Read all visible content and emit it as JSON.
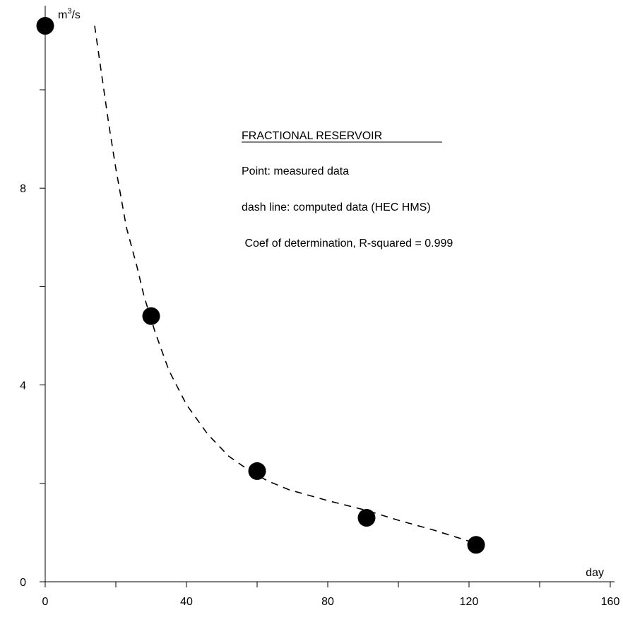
{
  "chart_data": {
    "type": "scatter",
    "xlabel": "day",
    "ylabel_base": "m",
    "ylabel_sup": "3",
    "ylabel_tail": "/s",
    "xlim": [
      0,
      160
    ],
    "ylim": [
      0,
      11.3
    ],
    "x_ticks": [
      0,
      40,
      80,
      120,
      160
    ],
    "x_minor_ticks": [
      20,
      60,
      100,
      140
    ],
    "y_ticks": [
      0,
      4,
      8
    ],
    "y_minor_ticks": [
      2,
      6,
      10
    ],
    "grid": false,
    "series": [
      {
        "role": "measured",
        "style": "points",
        "x": [
          0,
          30,
          60,
          91,
          122
        ],
        "y": [
          11.3,
          5.4,
          2.25,
          1.3,
          0.75
        ]
      },
      {
        "role": "computed",
        "style": "dashed-line",
        "x": [
          14,
          16,
          18,
          20,
          23,
          26,
          28,
          31,
          35,
          40,
          46,
          52,
          58,
          63,
          69,
          80,
          91,
          100,
          110,
          122
        ],
        "y": [
          11.3,
          10.3,
          9.3,
          8.4,
          7.2,
          6.4,
          5.8,
          5.1,
          4.3,
          3.6,
          3.0,
          2.55,
          2.25,
          2.05,
          1.87,
          1.65,
          1.45,
          1.25,
          1.05,
          0.78
        ]
      }
    ],
    "annotations": {
      "title": "FRACTIONAL  RESERVOIR",
      "lines": [
        "Point: measured data",
        "dash line: computed data (HEC HMS)",
        " Coef of determination, R-squared = 0.999"
      ]
    }
  }
}
